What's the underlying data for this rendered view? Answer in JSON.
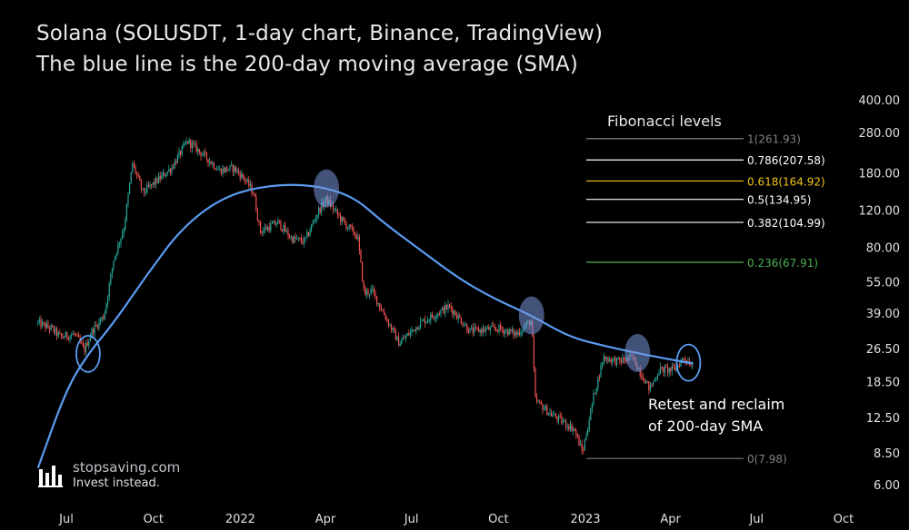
{
  "title": "Solana (SOLUSDT, 1-day chart, Binance, TradingView)",
  "subtitle": "The blue line is the 200-day moving average (SMA)",
  "brand": {
    "name": "stopsaving.com",
    "tagline": "Invest instead.",
    "icon": "bar-chart-icon"
  },
  "colors": {
    "background": "#000000",
    "up": "#26a69a",
    "down": "#ef5350",
    "sma": "#5b9cf0",
    "fib_gold": "#f0c419",
    "fib_green": "#4caf50",
    "fib_gray": "#808080"
  },
  "chart_data": {
    "type": "candlestick",
    "y_scale": "log",
    "y_ticks": [
      "400.00",
      "280.00",
      "180.00",
      "120.00",
      "80.00",
      "55.00",
      "39.00",
      "26.50",
      "18.50",
      "12.50",
      "8.50",
      "6.00"
    ],
    "x_ticks": [
      "Jul",
      "Oct",
      "2022",
      "Apr",
      "Jul",
      "Oct",
      "2023",
      "Apr",
      "Jul",
      "Oct"
    ],
    "price_path": [
      [
        "2021-06-01",
        35
      ],
      [
        "2021-06-15",
        33
      ],
      [
        "2021-06-25",
        30
      ],
      [
        "2021-07-10",
        31
      ],
      [
        "2021-07-20",
        26
      ],
      [
        "2021-07-28",
        32
      ],
      [
        "2021-08-10",
        38
      ],
      [
        "2021-08-20",
        70
      ],
      [
        "2021-08-31",
        100
      ],
      [
        "2021-09-09",
        200
      ],
      [
        "2021-09-20",
        145
      ],
      [
        "2021-10-01",
        160
      ],
      [
        "2021-10-20",
        190
      ],
      [
        "2021-11-06",
        255
      ],
      [
        "2021-11-25",
        215
      ],
      [
        "2021-12-10",
        185
      ],
      [
        "2021-12-25",
        190
      ],
      [
        "2022-01-05",
        170
      ],
      [
        "2022-01-15",
        145
      ],
      [
        "2022-01-22",
        95
      ],
      [
        "2022-02-10",
        105
      ],
      [
        "2022-02-24",
        88
      ],
      [
        "2022-03-10",
        85
      ],
      [
        "2022-03-25",
        120
      ],
      [
        "2022-04-02",
        135
      ],
      [
        "2022-04-20",
        105
      ],
      [
        "2022-05-05",
        90
      ],
      [
        "2022-05-12",
        48
      ],
      [
        "2022-05-20",
        50
      ],
      [
        "2022-06-18",
        28
      ],
      [
        "2022-07-10",
        35
      ],
      [
        "2022-08-10",
        42
      ],
      [
        "2022-09-01",
        32
      ],
      [
        "2022-10-01",
        33
      ],
      [
        "2022-10-20",
        31
      ],
      [
        "2022-11-05",
        36
      ],
      [
        "2022-11-09",
        15
      ],
      [
        "2022-11-25",
        13
      ],
      [
        "2022-12-20",
        11
      ],
      [
        "2022-12-29",
        8.5
      ],
      [
        "2023-01-10",
        16
      ],
      [
        "2023-01-20",
        24
      ],
      [
        "2023-02-05",
        23
      ],
      [
        "2023-02-20",
        24
      ],
      [
        "2023-03-10",
        17
      ],
      [
        "2023-03-20",
        21
      ],
      [
        "2023-04-05",
        21
      ],
      [
        "2023-04-15",
        24
      ],
      [
        "2023-04-25",
        22
      ]
    ],
    "sma_200": [
      [
        "2021-06-01",
        7.2
      ],
      [
        "2021-07-01",
        17
      ],
      [
        "2021-07-24",
        25
      ],
      [
        "2021-08-20",
        35
      ],
      [
        "2021-09-25",
        60
      ],
      [
        "2021-11-01",
        100
      ],
      [
        "2021-12-15",
        140
      ],
      [
        "2022-02-01",
        158
      ],
      [
        "2022-03-20",
        158
      ],
      [
        "2022-04-30",
        140
      ],
      [
        "2022-06-01",
        105
      ],
      [
        "2022-07-15",
        75
      ],
      [
        "2022-08-20",
        57
      ],
      [
        "2022-09-25",
        46
      ],
      [
        "2022-11-05",
        38
      ],
      [
        "2022-12-15",
        30
      ],
      [
        "2023-01-25",
        27
      ],
      [
        "2023-03-01",
        25
      ],
      [
        "2023-04-01",
        23.5
      ],
      [
        "2023-04-25",
        22.5
      ]
    ],
    "fibonacci": {
      "label": "Fibonacci levels",
      "levels": [
        {
          "label": "1(261.93)",
          "value": 261.93,
          "color": "#808080"
        },
        {
          "label": "0.786(207.58)",
          "value": 207.58,
          "color": "#ffffff"
        },
        {
          "label": "0.618(164.92)",
          "value": 164.92,
          "color": "#f0c419"
        },
        {
          "label": "0.5(134.95)",
          "value": 134.95,
          "color": "#ffffff"
        },
        {
          "label": "0.382(104.99)",
          "value": 104.99,
          "color": "#ffffff"
        },
        {
          "label": "0.236(67.91)",
          "value": 67.91,
          "color": "#4caf50"
        },
        {
          "label": "0(7.98)",
          "value": 7.98,
          "color": "#808080"
        }
      ]
    },
    "annotations": {
      "retest_line1": "Retest and reclaim",
      "retest_line2": "of 200-day SMA",
      "circled_touches": [
        "2021-07-24",
        "2022-04-02",
        "2022-11-05",
        "2023-02-25",
        "2023-04-20"
      ]
    }
  }
}
